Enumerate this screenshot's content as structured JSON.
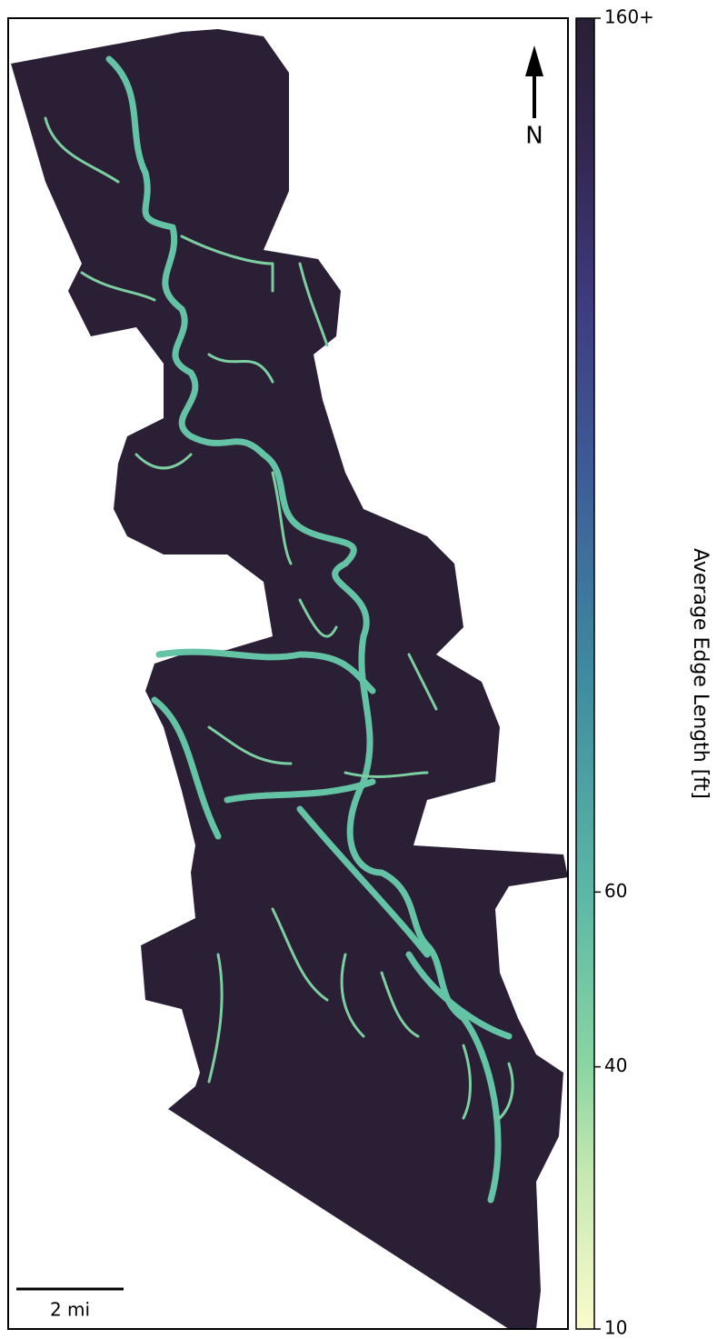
{
  "north_arrow": {
    "label": "N"
  },
  "scale_bar": {
    "label": "2 mi"
  },
  "colorbar": {
    "label": "Average Edge Length [ft]",
    "lim": [
      10,
      160
    ],
    "ticks": [
      10,
      40,
      60,
      {
        "value": 160,
        "label": "160+"
      }
    ]
  }
}
